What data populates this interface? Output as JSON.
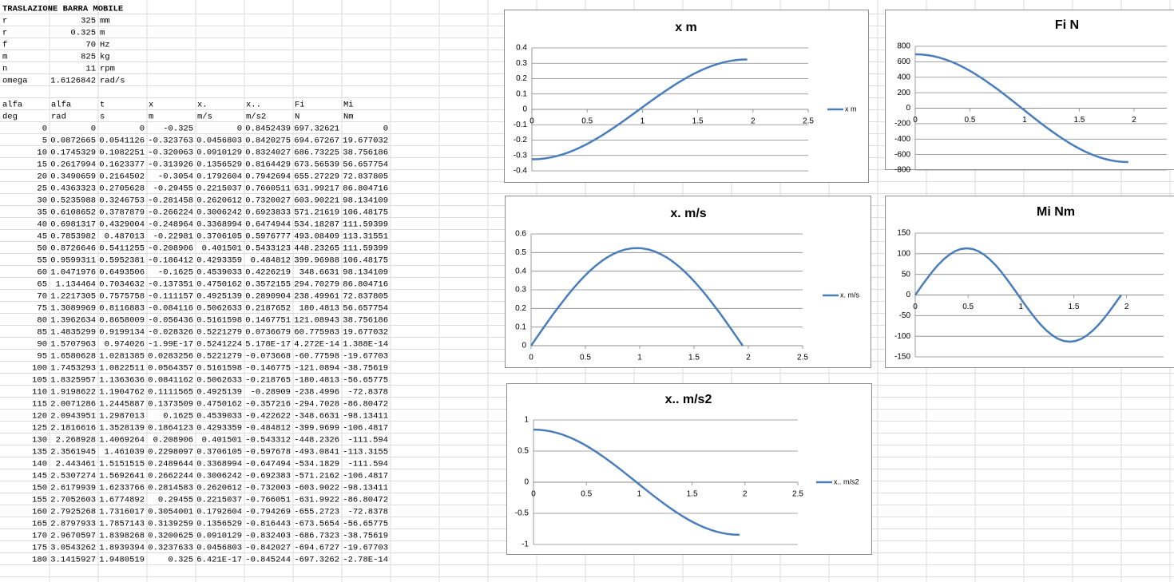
{
  "sheet": {
    "title": "TRASLAZIONE BARRA MOBILE",
    "params": [
      [
        "r",
        "325",
        "mm"
      ],
      [
        "r",
        "0.325",
        "m"
      ],
      [
        "f",
        "70",
        "Hz"
      ],
      [
        "m",
        "825",
        "kg"
      ],
      [
        "n",
        "11",
        "rpm"
      ],
      [
        "omega",
        "1.6126842",
        "rad/s"
      ]
    ],
    "header": [
      [
        "alfa",
        "alfa",
        "t",
        "x",
        "x.",
        "x..",
        "Fi",
        "Mi"
      ],
      [
        "deg",
        "rad",
        "s",
        "m",
        "m/s",
        "m/s2",
        "N",
        "Nm"
      ]
    ],
    "rows": [
      [
        "0",
        "0",
        "0",
        "-0.325",
        "0",
        "0.8452439",
        "697.32621",
        "0"
      ],
      [
        "5",
        "0.0872665",
        "0.0541126",
        "-0.323763",
        "0.0456803",
        "0.8420275",
        "694.67267",
        "19.677032"
      ],
      [
        "10",
        "0.1745329",
        "0.1082251",
        "-0.320063",
        "0.0910129",
        "0.8324027",
        "686.73225",
        "38.756186"
      ],
      [
        "15",
        "0.2617994",
        "0.1623377",
        "-0.313926",
        "0.1356529",
        "0.8164429",
        "673.56539",
        "56.657754"
      ],
      [
        "20",
        "0.3490659",
        "0.2164502",
        "-0.3054",
        "0.1792604",
        "0.7942694",
        "655.27229",
        "72.837805"
      ],
      [
        "25",
        "0.4363323",
        "0.2705628",
        "-0.29455",
        "0.2215037",
        "0.7660511",
        "631.99217",
        "86.804716"
      ],
      [
        "30",
        "0.5235988",
        "0.3246753",
        "-0.281458",
        "0.2620612",
        "0.7320027",
        "603.90221",
        "98.134109"
      ],
      [
        "35",
        "0.6108652",
        "0.3787879",
        "-0.266224",
        "0.3006242",
        "0.6923833",
        "571.21619",
        "106.48175"
      ],
      [
        "40",
        "0.6981317",
        "0.4329004",
        "-0.248964",
        "0.3368994",
        "0.6474944",
        "534.18287",
        "111.59399"
      ],
      [
        "45",
        "0.7853982",
        "0.487013",
        "-0.22981",
        "0.3706105",
        "0.5976777",
        "493.08409",
        "113.31551"
      ],
      [
        "50",
        "0.8726646",
        "0.5411255",
        "-0.208906",
        "0.401501",
        "0.5433123",
        "448.23265",
        "111.59399"
      ],
      [
        "55",
        "0.9599311",
        "0.5952381",
        "-0.186412",
        "0.4293359",
        "0.484812",
        "399.96988",
        "106.48175"
      ],
      [
        "60",
        "1.0471976",
        "0.6493506",
        "-0.1625",
        "0.4539033",
        "0.4226219",
        "348.6631",
        "98.134109"
      ],
      [
        "65",
        "1.134464",
        "0.7034632",
        "-0.137351",
        "0.4750162",
        "0.3572155",
        "294.70279",
        "86.804716"
      ],
      [
        "70",
        "1.2217305",
        "0.7575758",
        "-0.111157",
        "0.4925139",
        "0.2890904",
        "238.49961",
        "72.837805"
      ],
      [
        "75",
        "1.3089969",
        "0.8116883",
        "-0.084116",
        "0.5062633",
        "0.2187652",
        "180.4813",
        "56.657754"
      ],
      [
        "80",
        "1.3962634",
        "0.8658009",
        "-0.056436",
        "0.5161598",
        "0.1467751",
        "121.08943",
        "38.756186"
      ],
      [
        "85",
        "1.4835299",
        "0.9199134",
        "-0.028326",
        "0.5221279",
        "0.0736679",
        "60.775983",
        "19.677032"
      ],
      [
        "90",
        "1.5707963",
        "0.974026",
        "-1.99E-17",
        "0.5241224",
        "5.178E-17",
        "4.272E-14",
        "1.388E-14"
      ],
      [
        "95",
        "1.6580628",
        "1.0281385",
        "0.0283256",
        "0.5221279",
        "-0.073668",
        "-60.77598",
        "-19.67703"
      ],
      [
        "100",
        "1.7453293",
        "1.0822511",
        "0.0564357",
        "0.5161598",
        "-0.146775",
        "-121.0894",
        "-38.75619"
      ],
      [
        "105",
        "1.8325957",
        "1.1363636",
        "0.0841162",
        "0.5062633",
        "-0.218765",
        "-180.4813",
        "-56.65775"
      ],
      [
        "110",
        "1.9198622",
        "1.1904762",
        "0.1111565",
        "0.4925139",
        "-0.28909",
        "-238.4996",
        "-72.8378"
      ],
      [
        "115",
        "2.0071286",
        "1.2445887",
        "0.1373509",
        "0.4750162",
        "-0.357216",
        "-294.7028",
        "-86.80472"
      ],
      [
        "120",
        "2.0943951",
        "1.2987013",
        "0.1625",
        "0.4539033",
        "-0.422622",
        "-348.6631",
        "-98.13411"
      ],
      [
        "125",
        "2.1816616",
        "1.3528139",
        "0.1864123",
        "0.4293359",
        "-0.484812",
        "-399.9699",
        "-106.4817"
      ],
      [
        "130",
        "2.268928",
        "1.4069264",
        "0.208906",
        "0.401501",
        "-0.543312",
        "-448.2326",
        "-111.594"
      ],
      [
        "135",
        "2.3561945",
        "1.461039",
        "0.2298097",
        "0.3706105",
        "-0.597678",
        "-493.0841",
        "-113.3155"
      ],
      [
        "140",
        "2.443461",
        "1.5151515",
        "0.2489644",
        "0.3368994",
        "-0.647494",
        "-534.1829",
        "-111.594"
      ],
      [
        "145",
        "2.5307274",
        "1.5692641",
        "0.2662244",
        "0.3006242",
        "-0.692383",
        "-571.2162",
        "-106.4817"
      ],
      [
        "150",
        "2.6179939",
        "1.6233766",
        "0.2814583",
        "0.2620612",
        "-0.732003",
        "-603.9022",
        "-98.13411"
      ],
      [
        "155",
        "2.7052603",
        "1.6774892",
        "0.29455",
        "0.2215037",
        "-0.766051",
        "-631.9922",
        "-86.80472"
      ],
      [
        "160",
        "2.7925268",
        "1.7316017",
        "0.3054001",
        "0.1792604",
        "-0.794269",
        "-655.2723",
        "-72.8378"
      ],
      [
        "165",
        "2.8797933",
        "1.7857143",
        "0.3139259",
        "0.1356529",
        "-0.816443",
        "-673.5654",
        "-56.65775"
      ],
      [
        "170",
        "2.9670597",
        "1.8398268",
        "0.3200625",
        "0.0910129",
        "-0.832403",
        "-686.7323",
        "-38.75619"
      ],
      [
        "175",
        "3.0543262",
        "1.8939394",
        "0.3237633",
        "0.0456803",
        "-0.842027",
        "-694.6727",
        "-19.67703"
      ],
      [
        "180",
        "3.1415927",
        "1.9480519",
        "0.325",
        "6.421E-17",
        "-0.845244",
        "-697.3262",
        "-2.78E-14"
      ]
    ]
  },
  "chart_data": [
    {
      "type": "line",
      "title": "x m",
      "x": [
        0,
        0.054,
        0.108,
        0.162,
        0.216,
        0.271,
        0.325,
        0.379,
        0.433,
        0.487,
        0.541,
        0.595,
        0.649,
        0.703,
        0.758,
        0.812,
        0.866,
        0.92,
        0.974,
        1.028,
        1.082,
        1.136,
        1.19,
        1.245,
        1.299,
        1.353,
        1.407,
        1.461,
        1.515,
        1.569,
        1.623,
        1.677,
        1.732,
        1.786,
        1.84,
        1.894,
        1.948
      ],
      "series": [
        {
          "name": "x m",
          "color": "#4a7ebb",
          "values": [
            -0.325,
            -0.3238,
            -0.3201,
            -0.3139,
            -0.3054,
            -0.2946,
            -0.2815,
            -0.2662,
            -0.249,
            -0.2298,
            -0.2089,
            -0.1864,
            -0.1625,
            -0.1374,
            -0.1112,
            -0.0841,
            -0.0564,
            -0.0283,
            0,
            0.0283,
            0.0564,
            0.0841,
            0.1112,
            0.1374,
            0.1625,
            0.1864,
            0.2089,
            0.2298,
            0.249,
            0.2662,
            0.2815,
            0.2946,
            0.3054,
            0.3139,
            0.3201,
            0.3238,
            0.325
          ]
        }
      ],
      "xlim": [
        0,
        2.5
      ],
      "xticks": [
        0,
        0.5,
        1,
        1.5,
        2,
        2.5
      ],
      "ylim": [
        -0.4,
        0.4
      ],
      "yticks": [
        -0.4,
        -0.3,
        -0.2,
        -0.1,
        0,
        0.1,
        0.2,
        0.3,
        0.4
      ],
      "grid": true,
      "legend": "right"
    },
    {
      "type": "line",
      "title": "Fi N",
      "x": [
        0,
        0.054,
        0.108,
        0.162,
        0.216,
        0.271,
        0.325,
        0.379,
        0.433,
        0.487,
        0.541,
        0.595,
        0.649,
        0.703,
        0.758,
        0.812,
        0.866,
        0.92,
        0.974,
        1.028,
        1.082,
        1.136,
        1.19,
        1.245,
        1.299,
        1.353,
        1.407,
        1.461,
        1.515,
        1.569,
        1.623,
        1.677,
        1.732,
        1.786,
        1.84,
        1.894,
        1.948
      ],
      "series": [
        {
          "color": "#4a7ebb",
          "values": [
            697.33,
            694.67,
            686.73,
            673.57,
            655.27,
            631.99,
            603.9,
            571.22,
            534.18,
            493.08,
            448.23,
            399.97,
            348.66,
            294.7,
            238.5,
            180.48,
            121.09,
            60.78,
            0,
            -60.78,
            -121.09,
            -180.48,
            -238.5,
            -294.7,
            -348.66,
            -399.97,
            -448.23,
            -493.08,
            -534.18,
            -571.22,
            -603.9,
            -631.99,
            -655.27,
            -673.57,
            -686.73,
            -694.67,
            -697.33
          ]
        }
      ],
      "xlim": [
        0,
        2.3
      ],
      "xticks": [
        0,
        0.5,
        1,
        1.5,
        2
      ],
      "ylim": [
        -800,
        800
      ],
      "yticks": [
        -800,
        -600,
        -400,
        -200,
        0,
        200,
        400,
        600,
        800
      ],
      "grid": true
    },
    {
      "type": "line",
      "title": "x. m/s",
      "x": [
        0,
        0.054,
        0.108,
        0.162,
        0.216,
        0.271,
        0.325,
        0.379,
        0.433,
        0.487,
        0.541,
        0.595,
        0.649,
        0.703,
        0.758,
        0.812,
        0.866,
        0.92,
        0.974,
        1.028,
        1.082,
        1.136,
        1.19,
        1.245,
        1.299,
        1.353,
        1.407,
        1.461,
        1.515,
        1.569,
        1.623,
        1.677,
        1.732,
        1.786,
        1.84,
        1.894,
        1.948
      ],
      "series": [
        {
          "name": "x. m/s",
          "color": "#4a7ebb",
          "values": [
            0,
            0.0457,
            0.091,
            0.1357,
            0.1793,
            0.2215,
            0.2621,
            0.3006,
            0.3369,
            0.3706,
            0.4015,
            0.4293,
            0.4539,
            0.475,
            0.4925,
            0.5063,
            0.5162,
            0.5221,
            0.5241,
            0.5221,
            0.5162,
            0.5063,
            0.4925,
            0.475,
            0.4539,
            0.4293,
            0.4015,
            0.3706,
            0.3369,
            0.3006,
            0.2621,
            0.2215,
            0.1793,
            0.1357,
            0.091,
            0.0457,
            0
          ]
        }
      ],
      "xlim": [
        0,
        2.5
      ],
      "xticks": [
        0,
        0.5,
        1,
        1.5,
        2,
        2.5
      ],
      "ylim": [
        0,
        0.6
      ],
      "yticks": [
        0,
        0.1,
        0.2,
        0.3,
        0.4,
        0.5,
        0.6
      ],
      "grid": true,
      "legend": "right"
    },
    {
      "type": "line",
      "title": "Mi Nm",
      "x": [
        0,
        0.054,
        0.108,
        0.162,
        0.216,
        0.271,
        0.325,
        0.379,
        0.433,
        0.487,
        0.541,
        0.595,
        0.649,
        0.703,
        0.758,
        0.812,
        0.866,
        0.92,
        0.974,
        1.028,
        1.082,
        1.136,
        1.19,
        1.245,
        1.299,
        1.353,
        1.407,
        1.461,
        1.515,
        1.569,
        1.623,
        1.677,
        1.732,
        1.786,
        1.84,
        1.894,
        1.948
      ],
      "series": [
        {
          "color": "#4a7ebb",
          "values": [
            0,
            19.68,
            38.76,
            56.66,
            72.84,
            86.8,
            98.13,
            106.48,
            111.6,
            113.32,
            111.6,
            106.48,
            98.13,
            86.8,
            72.84,
            56.66,
            38.76,
            19.68,
            0,
            -19.68,
            -38.76,
            -56.66,
            -72.84,
            -86.8,
            -98.13,
            -106.48,
            -111.6,
            -113.32,
            -111.6,
            -106.48,
            -98.13,
            -86.8,
            -72.84,
            -56.66,
            -38.76,
            -19.68,
            0
          ]
        }
      ],
      "xlim": [
        0,
        2.35
      ],
      "xticks": [
        0,
        0.5,
        1,
        1.5,
        2
      ],
      "ylim": [
        -150,
        150
      ],
      "yticks": [
        -150,
        -100,
        -50,
        0,
        50,
        100,
        150
      ],
      "grid": true
    },
    {
      "type": "line",
      "title": "x.. m/s2",
      "x": [
        0,
        0.054,
        0.108,
        0.162,
        0.216,
        0.271,
        0.325,
        0.379,
        0.433,
        0.487,
        0.541,
        0.595,
        0.649,
        0.703,
        0.758,
        0.812,
        0.866,
        0.92,
        0.974,
        1.028,
        1.082,
        1.136,
        1.19,
        1.245,
        1.299,
        1.353,
        1.407,
        1.461,
        1.515,
        1.569,
        1.623,
        1.677,
        1.732,
        1.786,
        1.84,
        1.894,
        1.948
      ],
      "series": [
        {
          "name": "x.. m/s2",
          "color": "#4a7ebb",
          "values": [
            0.8452,
            0.842,
            0.8324,
            0.8164,
            0.7943,
            0.7661,
            0.732,
            0.6924,
            0.6475,
            0.5978,
            0.5433,
            0.4848,
            0.4226,
            0.3572,
            0.2891,
            0.2188,
            0.1468,
            0.0737,
            0,
            -0.0737,
            -0.1468,
            -0.2188,
            -0.2891,
            -0.3572,
            -0.4226,
            -0.4848,
            -0.5433,
            -0.5978,
            -0.6475,
            -0.6924,
            -0.732,
            -0.7661,
            -0.7943,
            -0.8164,
            -0.8324,
            -0.842,
            -0.8452
          ]
        }
      ],
      "xlim": [
        0,
        2.5
      ],
      "xticks": [
        0,
        0.5,
        1,
        1.5,
        2,
        2.5
      ],
      "ylim": [
        -1,
        1
      ],
      "yticks": [
        -1,
        -0.5,
        0,
        0.5,
        1
      ],
      "grid": true,
      "legend": "right"
    }
  ]
}
